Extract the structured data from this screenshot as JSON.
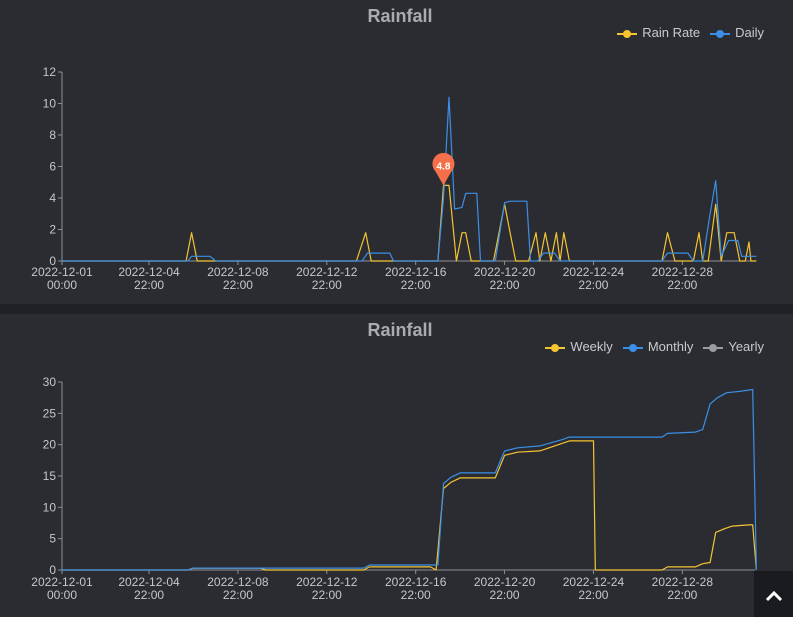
{
  "colors": {
    "rain_rate": "#f5c431",
    "daily": "#3b8fe8",
    "weekly": "#f5c431",
    "monthly": "#3b8fe8",
    "yearly": "#9a9ca1",
    "marker": "#f56f4a"
  },
  "x_tick_labels": [
    [
      "2022-12-01",
      "00:00"
    ],
    [
      "2022-12-04",
      "22:00"
    ],
    [
      "2022-12-08",
      "22:00"
    ],
    [
      "2022-12-12",
      "22:00"
    ],
    [
      "2022-12-16",
      "22:00"
    ],
    [
      "2022-12-20",
      "22:00"
    ],
    [
      "2022-12-24",
      "22:00"
    ],
    [
      "2022-12-28",
      "22:00"
    ]
  ],
  "scroll_top_icon": "chevron-up-icon",
  "chart_data": [
    {
      "type": "line",
      "title": "Rainfall",
      "legend": "top-right",
      "xlim": [
        "2022-12-01 00:00",
        "2022-12-31 22:00"
      ],
      "ylim": [
        0,
        12
      ],
      "yticks": [
        0,
        2,
        4,
        6,
        8,
        10,
        12
      ],
      "grid": false,
      "marker_point": {
        "series": "Rain Rate",
        "x": "2022-12-18 04:00",
        "y": 4.8,
        "label": "4.8"
      },
      "series": [
        {
          "name": "Rain Rate",
          "points": [
            [
              "2022-12-01 00:00",
              0
            ],
            [
              "2022-12-06 14:00",
              0
            ],
            [
              "2022-12-06 20:00",
              1.8
            ],
            [
              "2022-12-07 02:00",
              0
            ],
            [
              "2022-12-14 06:00",
              0
            ],
            [
              "2022-12-14 16:00",
              1.8
            ],
            [
              "2022-12-14 22:00",
              0
            ],
            [
              "2022-12-17 22:00",
              0
            ],
            [
              "2022-12-18 04:00",
              4.8
            ],
            [
              "2022-12-18 10:00",
              4.8
            ],
            [
              "2022-12-18 18:00",
              0
            ],
            [
              "2022-12-19 00:00",
              1.8
            ],
            [
              "2022-12-19 04:00",
              1.8
            ],
            [
              "2022-12-19 10:00",
              0
            ],
            [
              "2022-12-20 10:00",
              0
            ],
            [
              "2022-12-20 22:00",
              3.6
            ],
            [
              "2022-12-21 04:00",
              1.8
            ],
            [
              "2022-12-21 10:00",
              0
            ],
            [
              "2022-12-22 00:00",
              0
            ],
            [
              "2022-12-22 08:00",
              1.8
            ],
            [
              "2022-12-22 12:00",
              0
            ],
            [
              "2022-12-22 18:00",
              1.8
            ],
            [
              "2022-12-23 00:00",
              0
            ],
            [
              "2022-12-23 06:00",
              1.8
            ],
            [
              "2022-12-23 10:00",
              0
            ],
            [
              "2022-12-23 14:00",
              1.8
            ],
            [
              "2022-12-23 20:00",
              0
            ],
            [
              "2022-12-28 00:00",
              0
            ],
            [
              "2022-12-28 06:00",
              1.8
            ],
            [
              "2022-12-28 14:00",
              0
            ],
            [
              "2022-12-29 10:00",
              0
            ],
            [
              "2022-12-29 16:00",
              1.8
            ],
            [
              "2022-12-29 20:00",
              0
            ],
            [
              "2022-12-30 02:00",
              0
            ],
            [
              "2022-12-30 10:00",
              3.6
            ],
            [
              "2022-12-30 16:00",
              0
            ],
            [
              "2022-12-30 22:00",
              1.8
            ],
            [
              "2022-12-31 06:00",
              1.8
            ],
            [
              "2022-12-31 12:00",
              0
            ],
            [
              "2022-12-31 18:00",
              0
            ],
            [
              "2022-12-31 22:00",
              1.2
            ],
            [
              "2023-01-01 00:00",
              0
            ],
            [
              "2023-01-01 06:00",
              0
            ]
          ]
        },
        {
          "name": "Daily",
          "points": [
            [
              "2022-12-01 00:00",
              0
            ],
            [
              "2022-12-06 16:00",
              0
            ],
            [
              "2022-12-06 20:00",
              0.3
            ],
            [
              "2022-12-07 16:00",
              0.3
            ],
            [
              "2022-12-07 22:00",
              0
            ],
            [
              "2022-12-14 12:00",
              0
            ],
            [
              "2022-12-14 18:00",
              0.5
            ],
            [
              "2022-12-15 18:00",
              0.5
            ],
            [
              "2022-12-15 22:00",
              0
            ],
            [
              "2022-12-17 22:00",
              0
            ],
            [
              "2022-12-18 04:00",
              4.0
            ],
            [
              "2022-12-18 10:00",
              10.4
            ],
            [
              "2022-12-18 16:00",
              3.3
            ],
            [
              "2022-12-19 00:00",
              3.4
            ],
            [
              "2022-12-19 04:00",
              4.3
            ],
            [
              "2022-12-19 16:00",
              4.3
            ],
            [
              "2022-12-19 20:00",
              0
            ],
            [
              "2022-12-20 12:00",
              0
            ],
            [
              "2022-12-20 22:00",
              3.7
            ],
            [
              "2022-12-21 04:00",
              3.8
            ],
            [
              "2022-12-21 22:00",
              3.8
            ],
            [
              "2022-12-22 02:00",
              0
            ],
            [
              "2022-12-22 10:00",
              0
            ],
            [
              "2022-12-22 16:00",
              0.5
            ],
            [
              "2022-12-23 04:00",
              0.5
            ],
            [
              "2022-12-23 10:00",
              0
            ],
            [
              "2022-12-28 00:00",
              0
            ],
            [
              "2022-12-28 06:00",
              0.5
            ],
            [
              "2022-12-29 04:00",
              0.5
            ],
            [
              "2022-12-29 10:00",
              0
            ],
            [
              "2022-12-29 20:00",
              0
            ],
            [
              "2022-12-30 04:00",
              3.0
            ],
            [
              "2022-12-30 10:00",
              5.1
            ],
            [
              "2022-12-30 16:00",
              0.3
            ],
            [
              "2022-12-31 00:00",
              1.3
            ],
            [
              "2022-12-31 10:00",
              1.3
            ],
            [
              "2022-12-31 14:00",
              0.3
            ],
            [
              "2023-01-01 06:00",
              0.3
            ]
          ]
        }
      ]
    },
    {
      "type": "line",
      "title": "Rainfall",
      "legend": "top-right",
      "xlim": [
        "2022-12-01 00:00",
        "2022-12-31 22:00"
      ],
      "ylim": [
        0,
        30
      ],
      "yticks": [
        0,
        5,
        10,
        15,
        20,
        25,
        30
      ],
      "grid": false,
      "series": [
        {
          "name": "Weekly",
          "points": [
            [
              "2022-12-01 00:00",
              0
            ],
            [
              "2022-12-06 16:00",
              0
            ],
            [
              "2022-12-06 22:00",
              0.3
            ],
            [
              "2022-12-09 22:00",
              0.3
            ],
            [
              "2022-12-10 04:00",
              0
            ],
            [
              "2022-12-14 14:00",
              0
            ],
            [
              "2022-12-14 20:00",
              0.5
            ],
            [
              "2022-12-17 14:00",
              0.5
            ],
            [
              "2022-12-17 20:00",
              0
            ],
            [
              "2022-12-18 04:00",
              13.0
            ],
            [
              "2022-12-18 12:00",
              14.0
            ],
            [
              "2022-12-18 22:00",
              14.7
            ],
            [
              "2022-12-20 12:00",
              14.7
            ],
            [
              "2022-12-20 22:00",
              18.3
            ],
            [
              "2022-12-21 12:00",
              18.8
            ],
            [
              "2022-12-22 12:00",
              19.0
            ],
            [
              "2022-12-23 00:00",
              19.6
            ],
            [
              "2022-12-23 12:00",
              20.2
            ],
            [
              "2022-12-23 20:00",
              20.6
            ],
            [
              "2022-12-24 22:00",
              20.6
            ],
            [
              "2022-12-25 00:00",
              0
            ],
            [
              "2022-12-28 00:00",
              0
            ],
            [
              "2022-12-28 06:00",
              0.5
            ],
            [
              "2022-12-29 12:00",
              0.5
            ],
            [
              "2022-12-29 20:00",
              1.0
            ],
            [
              "2022-12-30 04:00",
              1.2
            ],
            [
              "2022-12-30 10:00",
              6.0
            ],
            [
              "2022-12-30 20:00",
              6.6
            ],
            [
              "2022-12-31 04:00",
              7.0
            ],
            [
              "2022-12-31 22:00",
              7.2
            ],
            [
              "2023-01-01 02:00",
              7.2
            ],
            [
              "2023-01-01 06:00",
              0
            ]
          ]
        },
        {
          "name": "Monthly",
          "points": [
            [
              "2022-12-01 00:00",
              0
            ],
            [
              "2022-12-06 16:00",
              0
            ],
            [
              "2022-12-06 22:00",
              0.3
            ],
            [
              "2022-12-14 14:00",
              0.3
            ],
            [
              "2022-12-14 20:00",
              0.8
            ],
            [
              "2022-12-17 22:00",
              0.8
            ],
            [
              "2022-12-18 04:00",
              13.8
            ],
            [
              "2022-12-18 12:00",
              14.8
            ],
            [
              "2022-12-18 22:00",
              15.5
            ],
            [
              "2022-12-20 12:00",
              15.5
            ],
            [
              "2022-12-20 22:00",
              19.0
            ],
            [
              "2022-12-21 12:00",
              19.5
            ],
            [
              "2022-12-22 12:00",
              19.8
            ],
            [
              "2022-12-23 00:00",
              20.3
            ],
            [
              "2022-12-23 12:00",
              20.8
            ],
            [
              "2022-12-23 20:00",
              21.2
            ],
            [
              "2022-12-28 00:00",
              21.2
            ],
            [
              "2022-12-28 06:00",
              21.8
            ],
            [
              "2022-12-29 12:00",
              22.0
            ],
            [
              "2022-12-29 20:00",
              22.4
            ],
            [
              "2022-12-30 04:00",
              26.5
            ],
            [
              "2022-12-30 12:00",
              27.5
            ],
            [
              "2022-12-30 22:00",
              28.3
            ],
            [
              "2022-12-31 12:00",
              28.5
            ],
            [
              "2023-01-01 02:00",
              28.8
            ],
            [
              "2023-01-01 06:00",
              0
            ]
          ]
        },
        {
          "name": "Yearly",
          "points": []
        }
      ]
    }
  ]
}
